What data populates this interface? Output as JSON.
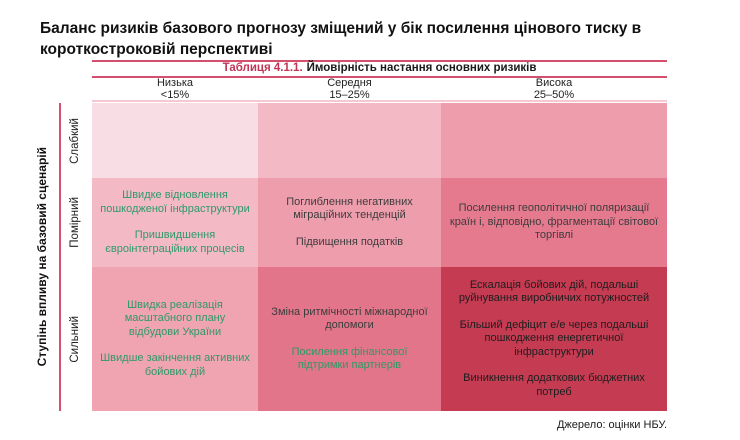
{
  "page": {
    "title": "Баланс ризиків базового прогнозу зміщений у бік посилення цінового тиску в короткостроковій перспективі",
    "source_note": "Джерело: оцінки НБУ."
  },
  "table": {
    "caption_number": "Таблиця 4.1.1.",
    "caption_title": "Ймовірність настання основних ризиків",
    "probability_axis": {
      "columns": [
        {
          "label": "Низька",
          "range": "<15%"
        },
        {
          "label": "Середня",
          "range": "15–25%"
        },
        {
          "label": "Висока",
          "range": "25–50%"
        }
      ]
    },
    "impact_axis": {
      "title": "Ступінь впливу на базовий сценарій",
      "rows": [
        "Слабкий",
        "Помірний",
        "Сильний"
      ]
    },
    "cells": {
      "r1c1": {
        "bg": "#f8dde4",
        "items": []
      },
      "r1c2": {
        "bg": "#f3bac6",
        "items": []
      },
      "r1c3": {
        "bg": "#ee9dac",
        "items": []
      },
      "r2c1": {
        "bg": "#f3bac6",
        "items": [
          {
            "text": "Швидке відновлення пошкодженої інфраструктури",
            "color": "green"
          },
          {
            "text": "Пришвидшення євроінтеграційних процесів",
            "color": "green"
          }
        ]
      },
      "r2c2": {
        "bg": "#ee9dac",
        "items": [
          {
            "text": "Поглиблення негативних міграційних тенденцій",
            "color": "dark"
          },
          {
            "text": "Підвищення податків",
            "color": "dark"
          }
        ]
      },
      "r2c3": {
        "bg": "#e5798e",
        "items": [
          {
            "text": "Посилення геополітичної поляризації країн і, відповідно, фрагментації світової торгівлі",
            "color": "dark"
          }
        ]
      },
      "r3c1": {
        "bg": "#f0a4b1",
        "items": [
          {
            "text": "Швидка реалізація масштабного плану відбудови України",
            "color": "green"
          },
          {
            "text": "Швидше закінчення активних бойових дій",
            "color": "green"
          }
        ]
      },
      "r3c2": {
        "bg": "#e2758a",
        "items": [
          {
            "text": "Зміна ритмічності міжнародної допомоги",
            "color": "dark"
          },
          {
            "text": "Посилення фінансової підтримки партнерів",
            "color": "green"
          }
        ]
      },
      "r3c3": {
        "bg": "#c43b52",
        "items": [
          {
            "text": "Ескалація бойових дій, подальші руйнування виробничих потужностей",
            "color": "black"
          },
          {
            "text": "Більший дефіцит е/е через подальші пошкодження енергетичної інфраструктури",
            "color": "black"
          },
          {
            "text": "Виникнення додаткових бюджетних потреб",
            "color": "black"
          }
        ]
      }
    },
    "colors": {
      "accent_line": "#d5506c",
      "light_line": "#f4c9d2",
      "caption_number_red": "#c13556",
      "green_text": "#2e9968",
      "dark_text": "#3d3d3d",
      "darkest_cell": "#c43b52"
    }
  }
}
